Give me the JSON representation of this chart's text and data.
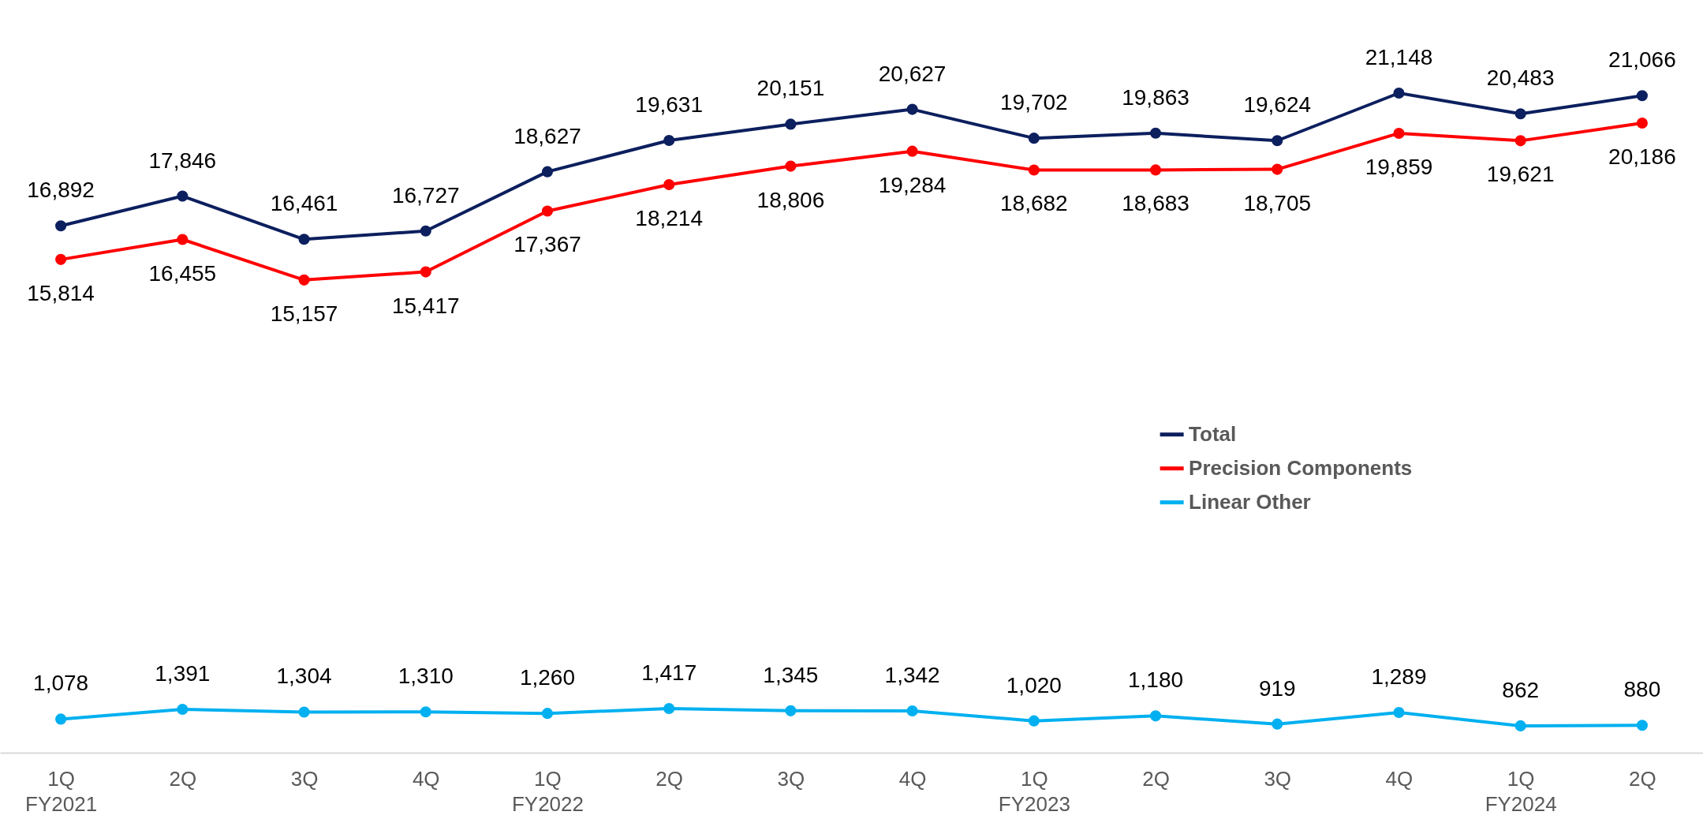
{
  "chart_data": {
    "type": "line",
    "categories": [
      "1Q\nFY2021",
      "2Q",
      "3Q",
      "4Q",
      "1Q\nFY2022",
      "2Q",
      "3Q",
      "4Q",
      "1Q\nFY2023",
      "2Q",
      "3Q",
      "4Q",
      "1Q\nFY2024",
      "2Q"
    ],
    "series": [
      {
        "name": "Total",
        "color": "#0c1f5e",
        "values": [
          16892,
          17846,
          16461,
          16727,
          18627,
          19631,
          20151,
          20627,
          19702,
          19863,
          19624,
          21148,
          20483,
          21066
        ],
        "value_labels": [
          "16,892",
          "17,846",
          "16,461",
          "16,727",
          "18,627",
          "19,631",
          "20,151",
          "20,627",
          "19,702",
          "19,863",
          "19,624",
          "21,148",
          "20,483",
          "21,066"
        ]
      },
      {
        "name": "Precision Components",
        "color": "#ff0000",
        "values": [
          15814,
          16455,
          15157,
          15417,
          17367,
          18214,
          18806,
          19284,
          18682,
          18683,
          18705,
          19859,
          19621,
          20186
        ],
        "value_labels": [
          "15,814",
          "16,455",
          "15,157",
          "15,417",
          "17,367",
          "18,214",
          "18,806",
          "19,284",
          "18,682",
          "18,683",
          "18,705",
          "19,859",
          "19,621",
          "20,186"
        ]
      },
      {
        "name": "Linear Other",
        "color": "#00b0f0",
        "values": [
          1078,
          1391,
          1304,
          1310,
          1260,
          1417,
          1345,
          1342,
          1020,
          1180,
          919,
          1289,
          862,
          880
        ],
        "value_labels": [
          "1,078",
          "1,391",
          "1,304",
          "1,310",
          "1,260",
          "1,417",
          "1,345",
          "1,342",
          "1,020",
          "1,180",
          "919",
          "1,289",
          "862",
          "880"
        ]
      }
    ],
    "legend": "right",
    "marker": "circle",
    "line_style": "solid"
  }
}
